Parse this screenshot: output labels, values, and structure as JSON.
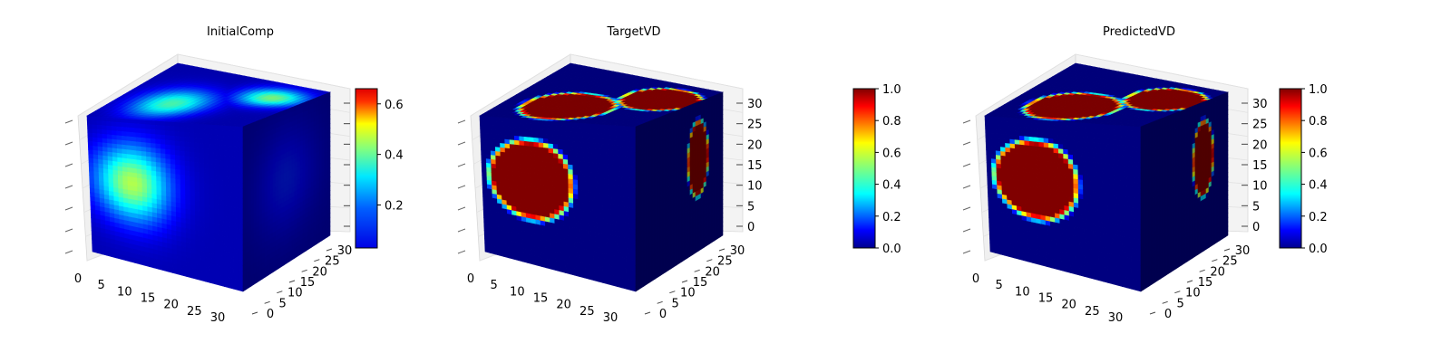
{
  "chart_data": [
    {
      "type": "voxel-3d",
      "title": "InitialComp",
      "xlim": [
        0,
        32
      ],
      "ylim": [
        0,
        32
      ],
      "zlim": [
        0,
        32
      ],
      "x_ticks": [
        "0",
        "5",
        "10",
        "15",
        "20",
        "25",
        "30"
      ],
      "y_ticks": [
        "0",
        "5",
        "10",
        "15",
        "20",
        "25",
        "30"
      ],
      "z_ticks": [
        "",
        "",
        "",
        "",
        "",
        "",
        ""
      ],
      "colormap": "jet",
      "colorbar": {
        "range": [
          0.03,
          0.66
        ],
        "ticks": [
          "0.2",
          "0.4",
          "0.6"
        ],
        "tick_values": [
          0.2,
          0.4,
          0.6
        ]
      },
      "front_blobs": [
        {
          "u": 0.28,
          "v": 0.45,
          "ru": 0.3,
          "rv": 0.33,
          "peak": 0.55,
          "soft": true
        }
      ],
      "top_blobs": [
        {
          "u": 0.35,
          "v": 0.35,
          "ru": 0.28,
          "rv": 0.35,
          "peak": 0.45,
          "soft": true
        },
        {
          "u": 0.8,
          "v": 0.7,
          "ru": 0.25,
          "rv": 0.25,
          "peak": 0.5,
          "soft": true
        }
      ],
      "side_blobs": [
        {
          "u": 0.5,
          "v": 0.45,
          "ru": 0.45,
          "rv": 0.45,
          "peak": 0.15,
          "soft": true
        }
      ],
      "base_value": 0.05
    },
    {
      "type": "voxel-3d",
      "title": "TargetVD",
      "xlim": [
        0,
        32
      ],
      "ylim": [
        0,
        32
      ],
      "zlim": [
        0,
        32
      ],
      "x_ticks": [
        "0",
        "5",
        "10",
        "15",
        "20",
        "25",
        "30"
      ],
      "y_ticks": [
        "0",
        "5",
        "10",
        "15",
        "20",
        "25",
        "30"
      ],
      "z_ticks": [
        "0",
        "5",
        "10",
        "15",
        "20",
        "25",
        "30"
      ],
      "colormap": "jet",
      "colorbar": {
        "range": [
          0.0,
          1.0
        ],
        "ticks": [
          "0.0",
          "0.2",
          "0.4",
          "0.6",
          "0.8",
          "1.0"
        ],
        "tick_values": [
          0.0,
          0.2,
          0.4,
          0.6,
          0.8,
          1.0
        ]
      },
      "front_blobs": [
        {
          "u": 0.32,
          "v": 0.42,
          "ru": 0.3,
          "rv": 0.3,
          "peak": 1.0,
          "soft": false
        }
      ],
      "top_blobs": [
        {
          "u": 0.4,
          "v": 0.3,
          "ru": 0.3,
          "rv": 0.3,
          "peak": 1.0,
          "soft": false
        },
        {
          "u": 0.8,
          "v": 0.65,
          "ru": 0.25,
          "rv": 0.28,
          "peak": 1.0,
          "soft": false
        }
      ],
      "side_blobs": [
        {
          "u": 0.72,
          "v": 0.38,
          "ru": 0.13,
          "rv": 0.28,
          "peak": 1.0,
          "soft": false
        }
      ],
      "base_value": 0.0
    },
    {
      "type": "voxel-3d",
      "title": "PredictedVD",
      "xlim": [
        0,
        32
      ],
      "ylim": [
        0,
        32
      ],
      "zlim": [
        0,
        32
      ],
      "x_ticks": [
        "0",
        "5",
        "10",
        "15",
        "20",
        "25",
        "30"
      ],
      "y_ticks": [
        "0",
        "5",
        "10",
        "15",
        "20",
        "25",
        "30"
      ],
      "z_ticks": [
        "0",
        "5",
        "10",
        "15",
        "20",
        "25",
        "30"
      ],
      "colormap": "jet",
      "colorbar": {
        "range": [
          0.0,
          1.0
        ],
        "ticks": [
          "0.0",
          "0.2",
          "0.4",
          "0.6",
          "0.8",
          "1.0"
        ],
        "tick_values": [
          0.0,
          0.2,
          0.4,
          0.6,
          0.8,
          1.0
        ]
      },
      "front_blobs": [
        {
          "u": 0.32,
          "v": 0.42,
          "ru": 0.3,
          "rv": 0.3,
          "peak": 1.0,
          "soft": false
        }
      ],
      "top_blobs": [
        {
          "u": 0.4,
          "v": 0.3,
          "ru": 0.3,
          "rv": 0.3,
          "peak": 1.0,
          "soft": false
        },
        {
          "u": 0.8,
          "v": 0.65,
          "ru": 0.25,
          "rv": 0.28,
          "peak": 1.0,
          "soft": false
        }
      ],
      "side_blobs": [
        {
          "u": 0.72,
          "v": 0.38,
          "ru": 0.13,
          "rv": 0.28,
          "peak": 1.0,
          "soft": false
        }
      ],
      "base_value": 0.0
    }
  ]
}
